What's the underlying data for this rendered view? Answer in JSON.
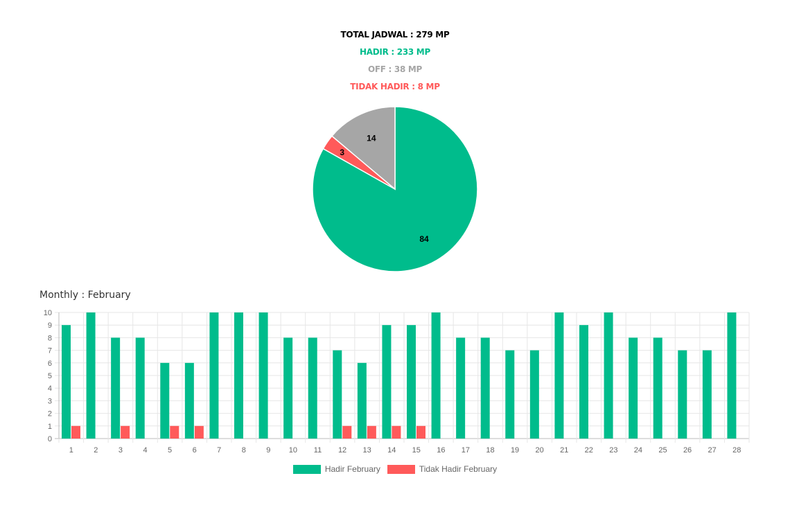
{
  "summary": {
    "total": "TOTAL JADWAL : 279 MP",
    "hadir": "HADIR : 233 MP",
    "off": "OFF : 38 MP",
    "tidak_hadir": "TIDAK HADIR : 8 MP"
  },
  "colors": {
    "hadir": "#00BC8C",
    "off": "#A6A6A6",
    "tidak_hadir": "#FF5A5A",
    "total": "#000000"
  },
  "monthly_title": "Monthly : February",
  "chart_data": [
    {
      "type": "pie",
      "unit": "%",
      "slices": [
        {
          "label": "Hadir",
          "value": 84,
          "color": "#00BC8C"
        },
        {
          "label": "Tidak Hadir",
          "value": 3,
          "color": "#FF5A5A"
        },
        {
          "label": "Off",
          "value": 14,
          "color": "#A6A6A6"
        }
      ],
      "start_angle": "top",
      "direction": "clockwise",
      "data_labels": [
        "84",
        "3",
        "14"
      ]
    },
    {
      "type": "bar",
      "title": "Monthly : February",
      "categories": [
        "1",
        "2",
        "3",
        "4",
        "5",
        "6",
        "7",
        "8",
        "9",
        "10",
        "11",
        "12",
        "13",
        "14",
        "15",
        "16",
        "17",
        "18",
        "19",
        "20",
        "21",
        "22",
        "23",
        "24",
        "25",
        "26",
        "27",
        "28"
      ],
      "series": [
        {
          "name": "Hadir February",
          "color": "#00BC8C",
          "values": [
            9,
            10,
            8,
            8,
            6,
            6,
            10,
            10,
            10,
            8,
            8,
            7,
            6,
            9,
            9,
            10,
            8,
            8,
            7,
            7,
            10,
            9,
            10,
            8,
            8,
            7,
            7,
            10
          ]
        },
        {
          "name": "Tidak Hadir February",
          "color": "#FF5A5A",
          "values": [
            1,
            0,
            1,
            0,
            1,
            1,
            0,
            0,
            0,
            0,
            0,
            1,
            1,
            1,
            1,
            0,
            0,
            0,
            0,
            0,
            0,
            0,
            0,
            0,
            0,
            0,
            0,
            0
          ]
        }
      ],
      "ylim": [
        0,
        10
      ],
      "yticks": [
        0,
        1,
        2,
        3,
        4,
        5,
        6,
        7,
        8,
        9,
        10
      ],
      "grid": true,
      "legend": "bottom"
    }
  ]
}
